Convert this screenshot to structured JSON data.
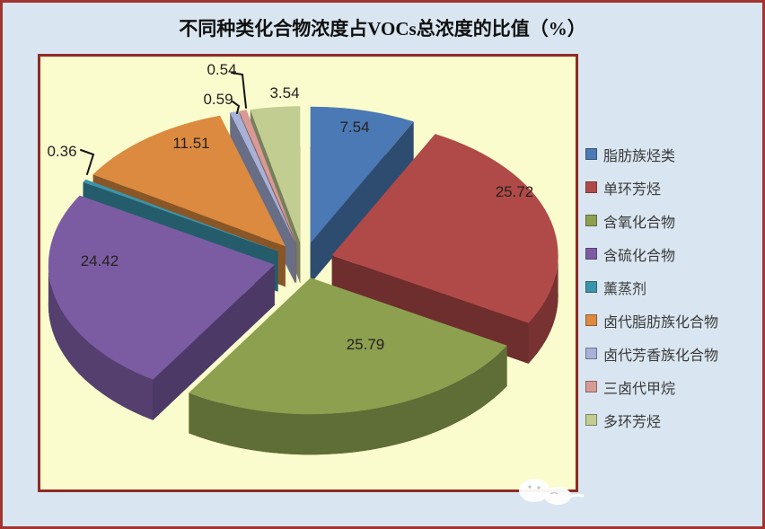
{
  "title": "不同种类化合物浓度占VOCs总浓度的比值（%）",
  "chart_data": {
    "type": "pie",
    "style": "3d-exploded",
    "title": "不同种类化合物浓度占VOCs总浓度的比值（%）",
    "unit": "%",
    "categories": [
      "脂肪族烃类",
      "单环芳烃",
      "含氧化合物",
      "含硫化合物",
      "薰蒸剂",
      "卤代脂肪族化合物",
      "卤代芳香族化合物",
      "三卤代甲烷",
      "多环芳烃"
    ],
    "values": [
      7.54,
      25.72,
      25.79,
      24.42,
      0.36,
      11.51,
      0.59,
      0.54,
      3.54
    ],
    "colors": [
      "#4a79b5",
      "#b04a48",
      "#8ca050",
      "#7b5ca3",
      "#3a95ac",
      "#dc8a3f",
      "#a8b2d8",
      "#d89a96",
      "#c2cd92"
    ],
    "legend_position": "right",
    "start_angle_deg": -90,
    "direction": "clockwise",
    "labels_show": "values"
  },
  "colors": {
    "page_background": "#d9e6f1",
    "outer_border": "#a23530",
    "plot_background": "#fbfccd",
    "plot_border": "#8e2b26",
    "title_text": "#101010",
    "legend_text": "#3a3a3a",
    "data_label_text": "#262120",
    "leader_line": "#141414"
  }
}
